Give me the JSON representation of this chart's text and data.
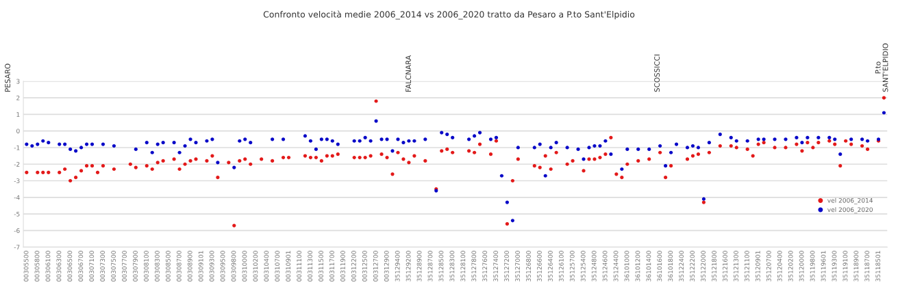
{
  "chart_data": {
    "type": "scatter",
    "title": "Confronto velocità medie 2006_2014 vs 2006_2020 tratto da Pesaro a P.to Sant'Elpidio",
    "categories": [
      "00305500",
      null,
      "00305800",
      null,
      "00306100",
      null,
      "00306300",
      null,
      "00306500",
      null,
      "00306700",
      null,
      "00307100",
      null,
      "00307300",
      null,
      "00307500",
      null,
      "00307700",
      null,
      "00307900",
      null,
      "00308100",
      null,
      "00308300",
      null,
      "00308500",
      null,
      "00308700",
      null,
      "00308900",
      null,
      "00309101",
      null,
      "00309300",
      null,
      "00309500",
      null,
      "00309800",
      null,
      "00310000",
      null,
      "00310200",
      null,
      "00310400",
      null,
      "00310700",
      null,
      "00310901",
      null,
      "00311100",
      null,
      "00311300",
      null,
      "00311500",
      null,
      "00311700",
      null,
      "00311900",
      null,
      "00312200",
      null,
      "00312500",
      null,
      "00312700",
      null,
      "00312900",
      null,
      "35129400",
      null,
      "35129200",
      null,
      "35128900",
      null,
      "35128700",
      null,
      "35128500",
      null,
      "35128300",
      null,
      "35128100",
      null,
      "35127800",
      null,
      "35127600",
      null,
      "35127400",
      null,
      "35127200",
      null,
      "35127000",
      null,
      "35126800",
      null,
      "35126600",
      null,
      "35126400",
      null,
      "35126100",
      null,
      "35125700",
      null,
      "35125400",
      null,
      "35124800",
      null,
      "35124600",
      null,
      "35124400",
      null,
      "36101000",
      null,
      "36101200",
      null,
      "36101400",
      null,
      "36101600",
      null,
      "36101800",
      null,
      "35122400",
      null,
      "35122200",
      null,
      "35122000",
      null,
      "35121800",
      null,
      "35121600",
      null,
      "35121300",
      null,
      "35121100",
      null,
      "35120901",
      null,
      "35120700",
      null,
      "35120400",
      null,
      "35120200",
      null,
      "35120000",
      null,
      "35119800",
      null,
      "35119601",
      null,
      "35119300",
      null,
      "35119100",
      null,
      "35118900",
      null,
      "35118700",
      null,
      "35118501",
      null
    ],
    "series": [
      {
        "name": "vel 2006_2014",
        "color": "#e31a1a",
        "values": [
          -2.5,
          null,
          -2.5,
          -2.5,
          -2.5,
          null,
          -2.5,
          -2.3,
          -3.0,
          -2.8,
          -2.4,
          -2.1,
          -2.1,
          -2.5,
          -2.1,
          null,
          -2.3,
          null,
          null,
          -2.0,
          -2.2,
          null,
          -2.1,
          -2.3,
          -1.9,
          -1.8,
          null,
          -1.7,
          -2.3,
          -2.0,
          -1.8,
          -1.7,
          null,
          -1.8,
          -1.5,
          -2.8,
          null,
          -1.9,
          -5.7,
          -1.8,
          -1.7,
          -2.0,
          null,
          -1.7,
          null,
          -1.8,
          null,
          -1.6,
          -1.6,
          null,
          null,
          -1.5,
          -1.6,
          -1.6,
          -1.8,
          -1.5,
          -1.5,
          -1.4,
          null,
          null,
          -1.6,
          -1.6,
          -1.6,
          -1.5,
          1.8,
          -1.4,
          -1.6,
          -2.6,
          -1.3,
          -1.7,
          -1.9,
          -1.5,
          null,
          -1.8,
          null,
          -3.5,
          -1.2,
          -1.1,
          -1.3,
          null,
          null,
          -1.2,
          -1.3,
          -0.8,
          null,
          -1.4,
          -0.6,
          null,
          -5.6,
          -3.0,
          -1.7,
          null,
          null,
          -2.1,
          -2.2,
          -1.5,
          -2.3,
          -1.3,
          null,
          -2.0,
          -1.8,
          null,
          -2.4,
          -1.7,
          -1.7,
          -1.6,
          -1.4,
          -0.4,
          -2.6,
          -2.8,
          -2.0,
          null,
          -1.8,
          null,
          -1.7,
          null,
          -1.3,
          -2.8,
          -2.1,
          null,
          null,
          -1.7,
          -1.5,
          -1.4,
          -4.3,
          -1.3,
          null,
          -0.9,
          null,
          -0.9,
          -1.0,
          null,
          -1.1,
          -1.5,
          -0.8,
          -0.7,
          null,
          -1.0,
          null,
          -1.0,
          null,
          -0.8,
          -1.2,
          -0.7,
          -1.0,
          -0.7,
          null,
          -0.6,
          -0.8,
          -2.1,
          -0.6,
          -0.8,
          null,
          -0.9,
          -1.1,
          null,
          -0.6,
          2.0
        ]
      },
      {
        "name": "vel 2006_2020",
        "color": "#0a0ac8",
        "values": [
          -0.8,
          -0.9,
          -0.8,
          -0.6,
          -0.7,
          null,
          -0.8,
          -0.8,
          -1.1,
          -1.2,
          -1.0,
          -0.8,
          -0.8,
          null,
          -0.8,
          null,
          -0.9,
          null,
          null,
          null,
          -1.1,
          null,
          -0.7,
          -1.3,
          -0.8,
          -0.7,
          null,
          -0.7,
          -1.3,
          -0.9,
          -0.5,
          -0.7,
          null,
          -0.6,
          -0.5,
          -1.9,
          null,
          null,
          -2.2,
          -0.6,
          -0.5,
          -0.7,
          null,
          null,
          null,
          -0.5,
          null,
          -0.5,
          null,
          null,
          null,
          -0.3,
          -0.6,
          -1.1,
          -0.5,
          -0.5,
          -0.6,
          -0.8,
          null,
          null,
          -0.6,
          -0.6,
          -0.4,
          -0.6,
          0.6,
          -0.5,
          -0.5,
          -1.2,
          -0.5,
          -0.7,
          -0.6,
          -0.6,
          null,
          -0.5,
          null,
          -3.6,
          -0.1,
          -0.2,
          -0.4,
          null,
          null,
          -0.5,
          -0.3,
          -0.1,
          null,
          -0.5,
          -0.4,
          -2.7,
          -4.3,
          -5.4,
          -1.0,
          null,
          null,
          -1.0,
          -0.8,
          -2.7,
          -1.0,
          -0.7,
          null,
          -1.0,
          null,
          -1.1,
          -1.7,
          -1.0,
          -0.9,
          -0.9,
          -0.6,
          -1.4,
          null,
          -2.3,
          -1.1,
          null,
          -1.1,
          null,
          -1.1,
          null,
          -0.9,
          -2.1,
          -1.3,
          -0.8,
          null,
          -1.0,
          -0.9,
          -1.0,
          -4.1,
          -0.7,
          null,
          -0.2,
          null,
          -0.4,
          -0.6,
          null,
          -0.6,
          null,
          -0.5,
          -0.5,
          null,
          -0.5,
          null,
          -0.5,
          null,
          -0.4,
          -0.7,
          -0.4,
          null,
          -0.4,
          null,
          -0.4,
          -0.5,
          -1.4,
          null,
          -0.5,
          null,
          -0.5,
          -0.6,
          null,
          -0.5,
          1.1
        ]
      }
    ],
    "ylim": [
      -7,
      3
    ],
    "yticks": [
      -7,
      -6,
      -5,
      -4,
      -3,
      -2,
      -1,
      0,
      1,
      2,
      3
    ],
    "grid": "y",
    "marker": "circle",
    "legend": "bottom right",
    "annotations": [
      "PESARO",
      "FALCNARA",
      "SCOSSICCI",
      "P.to\nSANT'ELPIDIO"
    ]
  }
}
